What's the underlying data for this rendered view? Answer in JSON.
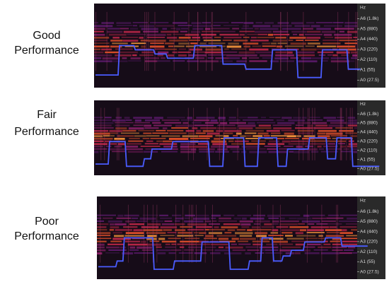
{
  "panels": [
    {
      "label": [
        "Good",
        "Performance"
      ],
      "axis": [
        "Hz",
        "A6 (1.8k)",
        "A5 (880)",
        "A4 (440)",
        "A3 (220)",
        "A2 (110)",
        "A1 (55)",
        "A0 (27.5)"
      ]
    },
    {
      "label": [
        "Fair",
        "Performance"
      ],
      "axis": [
        "Hz",
        "A6 (1.8k)",
        "A5 (880)",
        "A4 (440)",
        "A3 (220)",
        "A2 (110)",
        "A1 (55)",
        "A0 (27.5)"
      ]
    },
    {
      "label": [
        "Poor",
        "Performance"
      ],
      "axis": [
        "Hz",
        "A6 (1.8k)",
        "A5 (880)",
        "A4 (440)",
        "A3 (220)",
        "A2 (110)",
        "A1 (55)",
        "A0 (27.5)"
      ]
    }
  ]
}
